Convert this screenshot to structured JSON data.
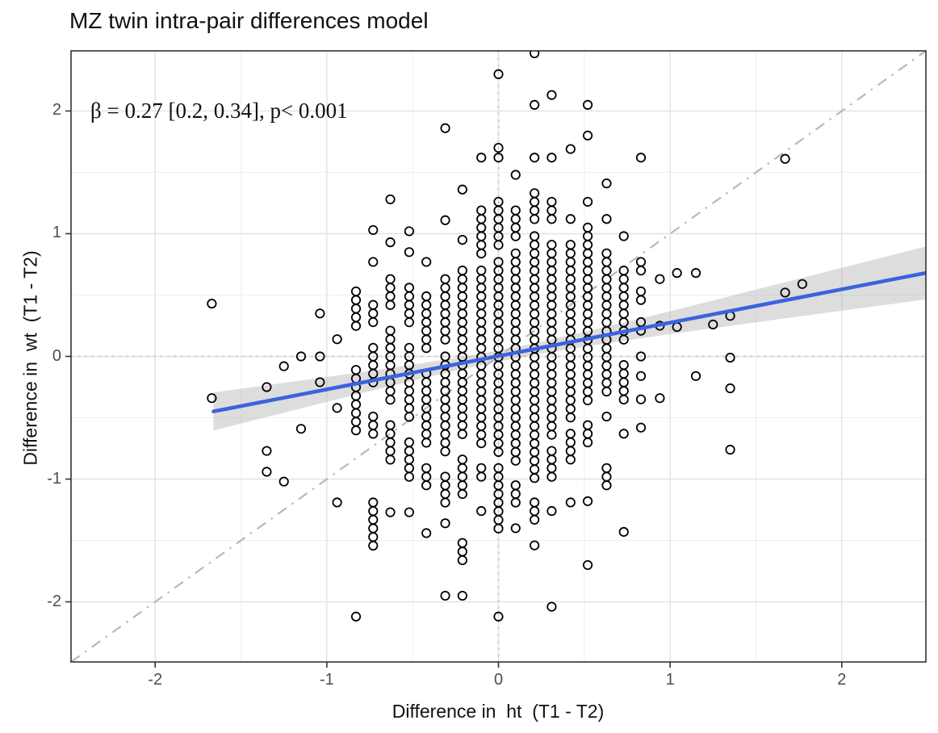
{
  "title": "MZ twin intra-pair differences model",
  "chart_data": {
    "type": "scatter",
    "title": "MZ twin intra-pair differences model",
    "xlabel": "Difference in  ht  (T1 - T2)",
    "ylabel": "Difference in  wt  (T1 - T2)",
    "xlim": [
      -2.49,
      2.49
    ],
    "ylim": [
      -2.49,
      2.49
    ],
    "x_ticks": [
      "-2",
      "-1",
      "0",
      "1",
      "2"
    ],
    "x_tick_values": [
      -2,
      -1,
      0,
      1,
      2
    ],
    "y_ticks": [
      "-2",
      "-1",
      "0",
      "1",
      "2"
    ],
    "y_tick_values": [
      -2,
      -1,
      0,
      1,
      2
    ],
    "minor_tick_values": [
      -1.5,
      -0.5,
      0.5,
      1.5
    ],
    "grid": "on",
    "annotation": {
      "text": "β = 0.27 [0.2, 0.34], p< 0.001",
      "x": -2.36,
      "y": 1.99
    },
    "regression": {
      "beta": 0.27,
      "ci_low": 0.2,
      "ci_high": 0.34,
      "p": "< 0.001",
      "slope": 0.272,
      "intercept": 0.003,
      "x_range": [
        -1.66,
        2.49
      ],
      "se_base": 0.045,
      "se_scale": 0.52,
      "se_center": 0.05
    },
    "identity_line": {
      "slope": 1,
      "intercept": 0,
      "style": "dash-dot"
    },
    "reference_lines": {
      "x": 0,
      "y": 0,
      "style": "dotted"
    },
    "point_style": {
      "shape": "open-circle",
      "radius_px": 5.2,
      "stroke_px": 1.8
    },
    "scatter_columns_note": "each column is x with vertical runs [top,bottom] expanded in steps of y_step",
    "y_step": 0.0704,
    "scatter_columns": [
      {
        "x": -1.67,
        "runs": [
          [
            0.43,
            0.43
          ],
          [
            -0.34,
            -0.34
          ]
        ]
      },
      {
        "x": -1.35,
        "runs": [
          [
            -0.25,
            -0.25
          ],
          [
            -0.77,
            -0.77
          ],
          [
            -0.94,
            -0.94
          ]
        ]
      },
      {
        "x": -1.25,
        "runs": [
          [
            -0.08,
            -0.08
          ],
          [
            -1.02,
            -1.02
          ]
        ]
      },
      {
        "x": -1.15,
        "runs": [
          [
            0.0,
            0.0
          ],
          [
            -0.59,
            -0.59
          ]
        ]
      },
      {
        "x": -1.04,
        "runs": [
          [
            0.35,
            0.35
          ],
          [
            0.0,
            0.0
          ],
          [
            -0.21,
            -0.21
          ]
        ]
      },
      {
        "x": -0.94,
        "runs": [
          [
            0.14,
            0.14
          ],
          [
            -0.42,
            -0.42
          ],
          [
            -1.19,
            -1.19
          ]
        ]
      },
      {
        "x": -0.83,
        "runs": [
          [
            0.53,
            0.25
          ],
          [
            -0.11,
            -0.63
          ],
          [
            -2.12,
            -2.12
          ]
        ]
      },
      {
        "x": -0.73,
        "runs": [
          [
            1.03,
            1.03
          ],
          [
            0.77,
            0.77
          ],
          [
            0.42,
            0.28
          ],
          [
            0.07,
            -0.21
          ],
          [
            -0.49,
            -0.63
          ],
          [
            -1.19,
            -1.53
          ]
        ]
      },
      {
        "x": -0.63,
        "runs": [
          [
            1.28,
            1.28
          ],
          [
            0.93,
            0.93
          ],
          [
            0.63,
            0.42
          ],
          [
            0.21,
            -0.35
          ],
          [
            -0.56,
            -0.84
          ],
          [
            -1.27,
            -1.27
          ]
        ]
      },
      {
        "x": -0.52,
        "runs": [
          [
            1.02,
            1.02
          ],
          [
            0.85,
            0.85
          ],
          [
            0.56,
            0.28
          ],
          [
            0.07,
            -0.49
          ],
          [
            -0.7,
            -1.01
          ],
          [
            -1.27,
            -1.27
          ]
        ]
      },
      {
        "x": -0.42,
        "runs": [
          [
            0.77,
            0.77
          ],
          [
            0.49,
            0.07
          ],
          [
            -0.14,
            -0.7
          ],
          [
            -0.91,
            -1.05
          ],
          [
            -1.44,
            -1.44
          ]
        ]
      },
      {
        "x": -0.31,
        "runs": [
          [
            1.86,
            1.86
          ],
          [
            1.11,
            1.11
          ],
          [
            0.63,
            0.14
          ],
          [
            0.0,
            -0.77
          ],
          [
            -0.98,
            -1.19
          ],
          [
            -1.36,
            -1.36
          ],
          [
            -1.95,
            -1.95
          ]
        ]
      },
      {
        "x": -0.21,
        "runs": [
          [
            1.36,
            1.36
          ],
          [
            0.95,
            0.95
          ],
          [
            0.7,
            0.0
          ],
          [
            -0.07,
            -0.63
          ],
          [
            -0.84,
            -1.1
          ],
          [
            -1.52,
            -1.63
          ],
          [
            -1.95,
            -1.95
          ]
        ]
      },
      {
        "x": -0.1,
        "runs": [
          [
            1.62,
            1.62
          ],
          [
            1.19,
            0.85
          ],
          [
            0.7,
            -0.7
          ],
          [
            -0.91,
            -1.01
          ],
          [
            -1.26,
            -1.26
          ]
        ]
      },
      {
        "x": 0.0,
        "runs": [
          [
            2.3,
            2.3
          ],
          [
            1.7,
            1.7
          ],
          [
            1.62,
            1.62
          ],
          [
            1.26,
            0.91
          ],
          [
            0.77,
            -0.77
          ],
          [
            -0.91,
            -1.43
          ],
          [
            -2.12,
            -2.12
          ]
        ]
      },
      {
        "x": 0.1,
        "runs": [
          [
            1.48,
            1.48
          ],
          [
            1.19,
            0.98
          ],
          [
            0.84,
            -0.84
          ],
          [
            -1.05,
            -1.19
          ],
          [
            -1.4,
            -1.4
          ]
        ]
      },
      {
        "x": 0.21,
        "runs": [
          [
            2.47,
            2.47
          ],
          [
            2.05,
            2.05
          ],
          [
            1.62,
            1.62
          ],
          [
            1.33,
            1.12
          ],
          [
            0.98,
            -0.98
          ],
          [
            -1.19,
            -1.33
          ],
          [
            -1.54,
            -1.54
          ]
        ]
      },
      {
        "x": 0.31,
        "runs": [
          [
            2.13,
            2.13
          ],
          [
            1.62,
            1.62
          ],
          [
            1.26,
            1.12
          ],
          [
            0.91,
            -0.63
          ],
          [
            -0.77,
            -0.98
          ],
          [
            -1.26,
            -1.26
          ],
          [
            -2.04,
            -2.04
          ]
        ]
      },
      {
        "x": 0.42,
        "runs": [
          [
            1.69,
            1.69
          ],
          [
            1.12,
            1.12
          ],
          [
            0.91,
            -0.49
          ],
          [
            -0.63,
            -0.84
          ],
          [
            -1.19,
            -1.19
          ]
        ]
      },
      {
        "x": 0.52,
        "runs": [
          [
            2.05,
            2.05
          ],
          [
            1.8,
            1.8
          ],
          [
            1.26,
            1.26
          ],
          [
            1.05,
            -0.35
          ],
          [
            -0.56,
            -0.7
          ],
          [
            -1.18,
            -1.18
          ],
          [
            -1.7,
            -1.7
          ]
        ]
      },
      {
        "x": 0.63,
        "runs": [
          [
            1.41,
            1.41
          ],
          [
            1.12,
            1.12
          ],
          [
            0.84,
            -0.28
          ],
          [
            -0.49,
            -0.49
          ],
          [
            -0.91,
            -1.05
          ]
        ]
      },
      {
        "x": 0.73,
        "runs": [
          [
            0.98,
            0.98
          ],
          [
            0.7,
            0.14
          ],
          [
            -0.07,
            -0.35
          ],
          [
            -0.63,
            -0.63
          ],
          [
            -1.43,
            -1.43
          ]
        ]
      },
      {
        "x": 0.83,
        "runs": [
          [
            1.62,
            1.62
          ],
          [
            0.77,
            0.7
          ],
          [
            0.53,
            0.44
          ],
          [
            0.28,
            0.18
          ],
          [
            0.0,
            0.0
          ],
          [
            -0.16,
            -0.16
          ],
          [
            -0.35,
            -0.35
          ],
          [
            -0.58,
            -0.58
          ]
        ]
      },
      {
        "x": 0.94,
        "runs": [
          [
            0.63,
            0.63
          ],
          [
            0.25,
            0.25
          ],
          [
            -0.34,
            -0.34
          ]
        ]
      },
      {
        "x": 1.04,
        "runs": [
          [
            0.68,
            0.68
          ],
          [
            0.24,
            0.24
          ]
        ]
      },
      {
        "x": 1.15,
        "runs": [
          [
            0.68,
            0.68
          ],
          [
            -0.16,
            -0.16
          ]
        ]
      },
      {
        "x": 1.25,
        "runs": [
          [
            0.26,
            0.26
          ]
        ]
      },
      {
        "x": 1.35,
        "runs": [
          [
            0.33,
            0.33
          ],
          [
            -0.01,
            -0.01
          ],
          [
            -0.26,
            -0.26
          ],
          [
            -0.76,
            -0.76
          ]
        ]
      },
      {
        "x": 1.67,
        "runs": [
          [
            1.61,
            1.61
          ],
          [
            0.52,
            0.52
          ]
        ]
      },
      {
        "x": 1.77,
        "runs": [
          [
            0.59,
            0.59
          ]
        ]
      }
    ],
    "colors": {
      "regression_line": "#3B63E0",
      "ci_band": "#B3B3B3",
      "ci_band_opacity": 0.45,
      "point_stroke": "#000000",
      "grid_major": "#E2E2E2",
      "grid_minor": "#EFEFEF",
      "reference_dotted": "#C9C9C9",
      "identity_dash": "#B8B8B8",
      "panel_border": "#333333",
      "tick_text": "#4D4D4D",
      "background": "#FFFFFF"
    },
    "legend": "none"
  }
}
